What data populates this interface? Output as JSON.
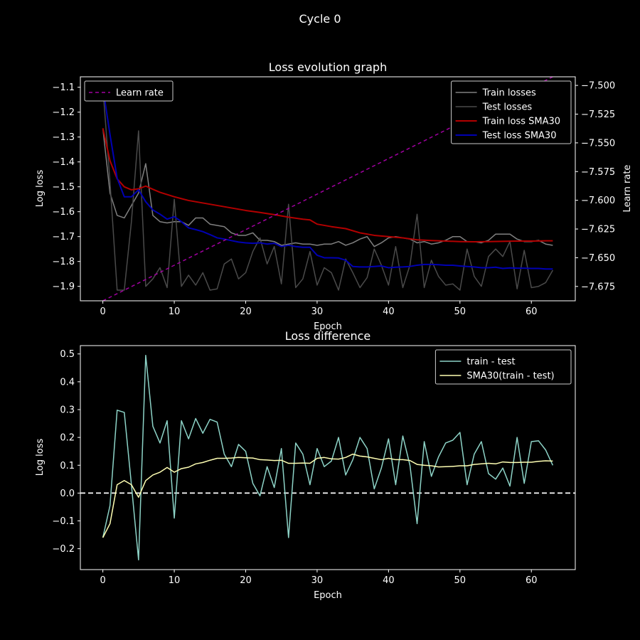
{
  "suptitle": "Cycle 0",
  "chart_data": [
    {
      "type": "line",
      "title": "Loss evolution graph",
      "xlabel": "Epoch",
      "ylabel": "Log loss",
      "ylabel_right": "Learn rate",
      "xlim": [
        -3.15,
        66.15
      ],
      "ylim": [
        -1.958,
        -1.058
      ],
      "ylim_right": [
        -7.6875,
        -7.4925
      ],
      "xticks": [
        0,
        10,
        20,
        30,
        40,
        50,
        60
      ],
      "yticks": [
        -1.9,
        -1.8,
        -1.7,
        -1.6,
        -1.5,
        -1.4,
        -1.3,
        -1.2,
        -1.1
      ],
      "yticks_right": [
        -7.675,
        -7.65,
        -7.625,
        -7.6,
        -7.575,
        -7.55,
        -7.525,
        -7.5
      ],
      "legend_left": "upper-left",
      "legend_right": "upper-right",
      "series": [
        {
          "name": "Train losses",
          "color": "#808080",
          "width": 1.5,
          "dash": "",
          "x": [
            0,
            1,
            2,
            3,
            4,
            5,
            6,
            7,
            8,
            9,
            10,
            11,
            12,
            13,
            14,
            15,
            16,
            17,
            18,
            19,
            20,
            21,
            22,
            23,
            24,
            25,
            26,
            27,
            28,
            29,
            30,
            31,
            32,
            33,
            34,
            35,
            36,
            37,
            38,
            39,
            40,
            41,
            42,
            43,
            44,
            45,
            46,
            47,
            48,
            49,
            50,
            51,
            52,
            53,
            54,
            55,
            56,
            57,
            58,
            59,
            60,
            61,
            62,
            63
          ],
          "values": [
            -1.265,
            -1.525,
            -1.615,
            -1.625,
            -1.575,
            -1.525,
            -1.407,
            -1.615,
            -1.64,
            -1.645,
            -1.64,
            -1.64,
            -1.655,
            -1.625,
            -1.625,
            -1.65,
            -1.655,
            -1.66,
            -1.685,
            -1.695,
            -1.695,
            -1.685,
            -1.715,
            -1.715,
            -1.72,
            -1.735,
            -1.73,
            -1.725,
            -1.73,
            -1.73,
            -1.735,
            -1.73,
            -1.73,
            -1.72,
            -1.735,
            -1.725,
            -1.71,
            -1.7,
            -1.74,
            -1.725,
            -1.705,
            -1.7,
            -1.705,
            -1.71,
            -1.725,
            -1.72,
            -1.73,
            -1.725,
            -1.715,
            -1.7,
            -1.7,
            -1.72,
            -1.72,
            -1.725,
            -1.715,
            -1.69,
            -1.69,
            -1.69,
            -1.71,
            -1.72,
            -1.72,
            -1.715,
            -1.73,
            -1.735
          ]
        },
        {
          "name": "Test losses",
          "color": "#4a4a4a",
          "width": 1.5,
          "dash": "",
          "x": [
            0,
            1,
            2,
            3,
            4,
            5,
            6,
            7,
            8,
            9,
            10,
            11,
            12,
            13,
            14,
            15,
            16,
            17,
            18,
            19,
            20,
            21,
            22,
            23,
            24,
            25,
            26,
            27,
            28,
            29,
            30,
            31,
            32,
            33,
            34,
            35,
            36,
            37,
            38,
            39,
            40,
            41,
            42,
            43,
            44,
            45,
            46,
            47,
            48,
            49,
            50,
            51,
            52,
            53,
            54,
            55,
            56,
            57,
            58,
            59,
            60,
            61,
            62,
            63
          ],
          "values": [
            -1.1,
            -1.48,
            -1.915,
            -1.915,
            -1.64,
            -1.275,
            -1.9,
            -1.87,
            -1.825,
            -1.905,
            -1.55,
            -1.9,
            -1.855,
            -1.895,
            -1.845,
            -1.915,
            -1.91,
            -1.81,
            -1.79,
            -1.87,
            -1.845,
            -1.76,
            -1.705,
            -1.81,
            -1.74,
            -1.89,
            -1.57,
            -1.905,
            -1.87,
            -1.76,
            -1.895,
            -1.825,
            -1.845,
            -1.915,
            -1.79,
            -1.845,
            -1.905,
            -1.865,
            -1.75,
            -1.815,
            -1.895,
            -1.74,
            -1.905,
            -1.815,
            -1.61,
            -1.905,
            -1.795,
            -1.86,
            -1.895,
            -1.89,
            -1.915,
            -1.75,
            -1.86,
            -1.9,
            -1.78,
            -1.75,
            -1.78,
            -1.72,
            -1.91,
            -1.755,
            -1.905,
            -1.9,
            -1.885,
            -1.835
          ]
        },
        {
          "name": "Train loss SMA30",
          "color": "#b30000",
          "width": 2,
          "dash": "",
          "x": [
            0,
            1,
            2,
            3,
            4,
            5,
            6,
            7,
            8,
            10,
            12,
            14,
            16,
            18,
            20,
            22,
            24,
            26,
            28,
            29,
            30,
            32,
            34,
            36,
            38,
            40,
            42,
            44,
            46,
            48,
            50,
            52,
            54,
            56,
            58,
            60,
            62,
            63
          ],
          "values": [
            -1.265,
            -1.395,
            -1.468,
            -1.5,
            -1.512,
            -1.508,
            -1.497,
            -1.51,
            -1.522,
            -1.54,
            -1.555,
            -1.565,
            -1.575,
            -1.585,
            -1.595,
            -1.603,
            -1.612,
            -1.622,
            -1.63,
            -1.633,
            -1.65,
            -1.66,
            -1.668,
            -1.685,
            -1.695,
            -1.7,
            -1.705,
            -1.713,
            -1.716,
            -1.718,
            -1.72,
            -1.721,
            -1.72,
            -1.719,
            -1.718,
            -1.718,
            -1.717,
            -1.717
          ]
        },
        {
          "name": "Test loss SMA30",
          "color": "#0000b3",
          "width": 2,
          "dash": "",
          "x": [
            0,
            1,
            2,
            3,
            4,
            5,
            6,
            7,
            8,
            9,
            10,
            11,
            12,
            13,
            14,
            15,
            16,
            17,
            18,
            19,
            20,
            21,
            22,
            23,
            24,
            25,
            26,
            27,
            28,
            29,
            30,
            31,
            32,
            33,
            34,
            35,
            36,
            37,
            38,
            39,
            40,
            41,
            42,
            43,
            44,
            45,
            46,
            47,
            48,
            49,
            50,
            51,
            52,
            53,
            54,
            55,
            56,
            57,
            58,
            59,
            60,
            61,
            62,
            63
          ],
          "values": [
            -1.1,
            -1.29,
            -1.465,
            -1.54,
            -1.54,
            -1.512,
            -1.56,
            -1.593,
            -1.61,
            -1.63,
            -1.62,
            -1.64,
            -1.665,
            -1.672,
            -1.68,
            -1.692,
            -1.705,
            -1.71,
            -1.716,
            -1.722,
            -1.725,
            -1.727,
            -1.725,
            -1.73,
            -1.727,
            -1.74,
            -1.735,
            -1.74,
            -1.743,
            -1.743,
            -1.775,
            -1.785,
            -1.785,
            -1.786,
            -1.795,
            -1.82,
            -1.822,
            -1.822,
            -1.82,
            -1.818,
            -1.825,
            -1.823,
            -1.822,
            -1.82,
            -1.815,
            -1.812,
            -1.812,
            -1.813,
            -1.815,
            -1.815,
            -1.818,
            -1.82,
            -1.822,
            -1.825,
            -1.825,
            -1.823,
            -1.828,
            -1.826,
            -1.827,
            -1.827,
            -1.828,
            -1.828,
            -1.83,
            -1.83
          ]
        },
        {
          "name": "Learn rate",
          "color": "#a000a0",
          "width": 1.5,
          "dash": "5,4",
          "axis": "right",
          "x": [
            0,
            63
          ],
          "values": [
            -7.6875,
            -7.4925
          ]
        }
      ]
    },
    {
      "type": "line",
      "title": "Loss difference",
      "xlabel": "Epoch",
      "ylabel": "Log loss",
      "xlim": [
        -3.15,
        66.15
      ],
      "ylim": [
        -0.275,
        0.53
      ],
      "xticks": [
        0,
        10,
        20,
        30,
        40,
        50,
        60
      ],
      "yticks": [
        -0.2,
        -0.1,
        0.0,
        0.1,
        0.2,
        0.3,
        0.4,
        0.5
      ],
      "hline": 0.0,
      "legend": "upper-right",
      "series": [
        {
          "name": "train - test",
          "color": "#8dd3c7",
          "width": 1.5,
          "x": [
            0,
            1,
            2,
            3,
            4,
            5,
            6,
            7,
            8,
            9,
            10,
            11,
            12,
            13,
            14,
            15,
            16,
            17,
            18,
            19,
            20,
            21,
            22,
            23,
            24,
            25,
            26,
            27,
            28,
            29,
            30,
            31,
            32,
            33,
            34,
            35,
            36,
            37,
            38,
            39,
            40,
            41,
            42,
            43,
            44,
            45,
            46,
            47,
            48,
            49,
            50,
            51,
            52,
            53,
            54,
            55,
            56,
            57,
            58,
            59,
            60,
            61,
            62,
            63
          ],
          "values": [
            -0.16,
            -0.045,
            0.298,
            0.29,
            0.03,
            -0.24,
            0.495,
            0.24,
            0.18,
            0.26,
            -0.09,
            0.26,
            0.195,
            0.268,
            0.215,
            0.265,
            0.255,
            0.14,
            0.095,
            0.175,
            0.15,
            0.035,
            -0.01,
            0.095,
            0.02,
            0.16,
            -0.16,
            0.18,
            0.14,
            0.03,
            0.16,
            0.095,
            0.115,
            0.2,
            0.065,
            0.12,
            0.2,
            0.16,
            0.015,
            0.09,
            0.195,
            0.03,
            0.205,
            0.1,
            -0.11,
            0.185,
            0.06,
            0.13,
            0.18,
            0.19,
            0.218,
            0.03,
            0.14,
            0.185,
            0.07,
            0.05,
            0.09,
            0.025,
            0.2,
            0.035,
            0.185,
            0.188,
            0.155,
            0.1
          ]
        },
        {
          "name": "SMA30(train - test)",
          "color": "#ffffb3",
          "width": 1.5,
          "x": [
            0,
            1,
            2,
            3,
            4,
            5,
            6,
            7,
            8,
            9,
            10,
            11,
            12,
            13,
            14,
            15,
            16,
            17,
            18,
            19,
            20,
            21,
            22,
            23,
            24,
            25,
            26,
            27,
            28,
            29,
            30,
            31,
            32,
            33,
            34,
            35,
            36,
            37,
            38,
            39,
            40,
            41,
            42,
            43,
            44,
            45,
            46,
            47,
            48,
            49,
            50,
            51,
            52,
            53,
            54,
            55,
            56,
            57,
            58,
            59,
            60,
            61,
            62,
            63
          ],
          "values": [
            -0.16,
            -0.11,
            0.03,
            0.045,
            0.03,
            -0.015,
            0.045,
            0.065,
            0.075,
            0.092,
            0.075,
            0.088,
            0.093,
            0.105,
            0.11,
            0.118,
            0.125,
            0.125,
            0.126,
            0.128,
            0.127,
            0.126,
            0.12,
            0.119,
            0.117,
            0.118,
            0.107,
            0.107,
            0.108,
            0.107,
            0.125,
            0.128,
            0.123,
            0.122,
            0.128,
            0.14,
            0.133,
            0.13,
            0.125,
            0.12,
            0.125,
            0.12,
            0.12,
            0.117,
            0.103,
            0.1,
            0.098,
            0.094,
            0.095,
            0.096,
            0.098,
            0.098,
            0.103,
            0.105,
            0.107,
            0.105,
            0.112,
            0.11,
            0.11,
            0.111,
            0.111,
            0.114,
            0.116,
            0.115
          ]
        }
      ]
    }
  ]
}
